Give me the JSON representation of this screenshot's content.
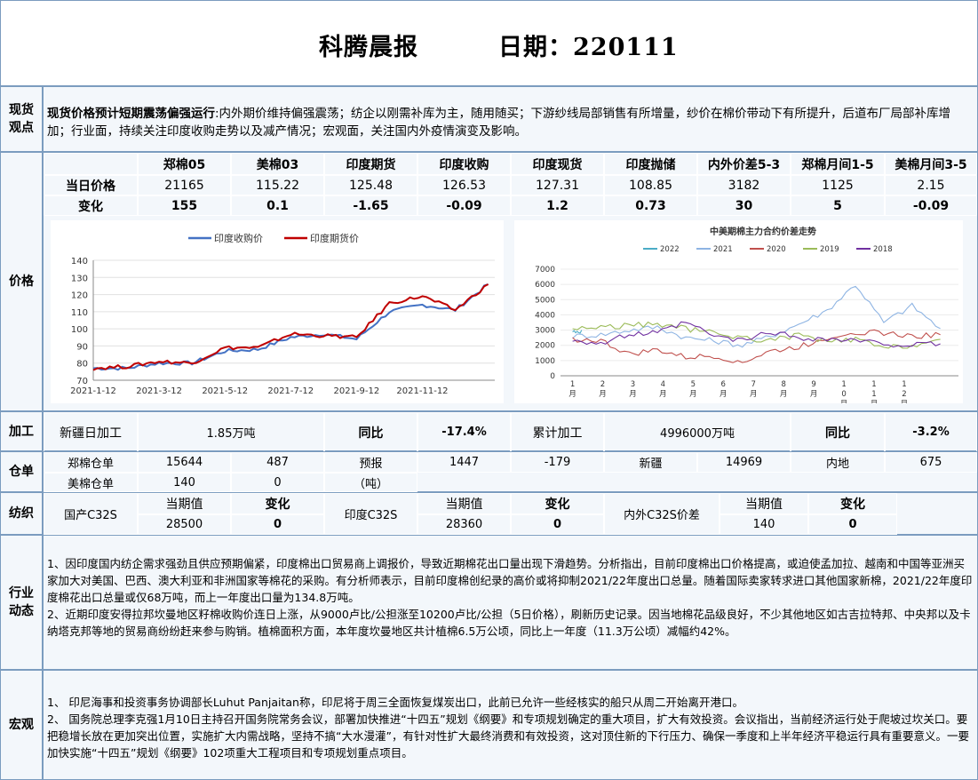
{
  "header": {
    "name": "科腾晨报",
    "date": "日期：220111"
  },
  "spot": {
    "label": "现货观点",
    "lead": "现货价格预计短期震荡偏强运行",
    "text": ":内外期价维持偏强震荡；纺企以刚需补库为主，随用随买；下游纱线局部销售有所增量，纱价在棉价带动下有所提升，后道布厂局部补库增加；行业面，持续关注印度收购走势以及减产情况；宏观面，关注国内外疫情演变及影响。"
  },
  "price": {
    "label": "价格",
    "columns": [
      "郑棉05",
      "美棉03",
      "印度期货",
      "印度收购",
      "印度现货",
      "印度抛储",
      "内外价差5-3",
      "郑棉月间1-5",
      "美棉月间3-5"
    ],
    "row_current_label": "当日价格",
    "current": [
      "21165",
      "115.22",
      "125.48",
      "126.53",
      "127.31",
      "108.85",
      "3182",
      "1125",
      "2.15"
    ],
    "row_change_label": "变化",
    "change": [
      "155",
      "0.1",
      "-1.65",
      "-0.09",
      "1.2",
      "0.73",
      "30",
      "5",
      "-0.09"
    ]
  },
  "chart_data": [
    {
      "type": "line",
      "title": "",
      "series": [
        {
          "name": "印度收购价",
          "color": "#4472c4"
        },
        {
          "name": "印度期货价",
          "color": "#c00000"
        }
      ],
      "x_ticks": [
        "2021-1-12",
        "2021-3-12",
        "2021-5-12",
        "2021-7-12",
        "2021-9-12",
        "2021-11-12"
      ],
      "ylim": [
        70,
        140
      ],
      "y_ticks": [
        70,
        80,
        90,
        100,
        110,
        120,
        130,
        140
      ],
      "points_month": [
        0,
        1,
        2,
        3,
        4,
        5,
        6,
        7,
        8,
        9,
        10,
        11,
        12
      ],
      "series_values": {
        "印度收购价": [
          77,
          77,
          80,
          80,
          87,
          88,
          95,
          97,
          94,
          110,
          114,
          111,
          126
        ],
        "印度期货价": [
          77,
          78,
          81,
          80,
          89,
          89,
          97,
          96,
          95,
          115,
          119,
          111,
          126
        ]
      }
    },
    {
      "type": "line",
      "title": "中美期棉主力合约价差走势",
      "series": [
        {
          "name": "2022",
          "color": "#4bacc6"
        },
        {
          "name": "2021",
          "color": "#8eb4e3"
        },
        {
          "name": "2020",
          "color": "#c0504d"
        },
        {
          "name": "2019",
          "color": "#9bbb59"
        },
        {
          "name": "2018",
          "color": "#7030a0"
        }
      ],
      "ylim": [
        0,
        7000
      ],
      "y_ticks": [
        0,
        1000,
        2000,
        3000,
        4000,
        5000,
        6000,
        7000
      ],
      "x_ticks": [
        "1月",
        "2月",
        "3月",
        "4月",
        "5月",
        "6月",
        "7月",
        "8月",
        "9月",
        "10月",
        "11月",
        "12月"
      ],
      "series_values": {
        "2022": [
          2900,
          3000
        ],
        "2021": [
          2600,
          2700,
          3000,
          3200,
          2500,
          2300,
          2000,
          2600,
          3400,
          4300,
          6000,
          3500,
          4600,
          3100
        ],
        "2020": [
          2400,
          2300,
          1400,
          1700,
          1200,
          1300,
          900,
          1600,
          1900,
          2500,
          2900,
          2800,
          2600,
          2700
        ],
        "2019": [
          3100,
          3200,
          3300,
          3400,
          3100,
          2800,
          2500,
          2300,
          2700,
          2200,
          2400,
          1800,
          2000,
          2400
        ],
        "2018": [
          2400,
          2100,
          2700,
          2800,
          3500,
          2600,
          2300,
          2900,
          2500,
          2400,
          2300,
          2100,
          2000,
          2100
        ]
      }
    }
  ],
  "processing": {
    "label": "加工",
    "xj_label": "新疆日加工",
    "xj_value": "1.85万吨",
    "yoy_label": "同比",
    "xj_yoy": "-17.4%",
    "total_label": "累计加工",
    "total_value": "4996000万吨",
    "total_yoy": "-3.2%"
  },
  "warehouse": {
    "label": "仓单",
    "zm_label": "郑棉仓单",
    "zm_value": "15644",
    "zm_change": "487",
    "forecast_label": "预报",
    "forecast_unit": "（吨）",
    "forecast_value": "1447",
    "forecast_change": "-179",
    "xj_label": "新疆",
    "xj_value": "14969",
    "nd_label": "内地",
    "nd_value": "675",
    "mm_label": "美棉仓单",
    "mm_value": "140",
    "mm_change": "0"
  },
  "textile": {
    "label": "纺织",
    "cur_label": "当期值",
    "chg_label": "变化",
    "items": [
      {
        "name": "国产C32S",
        "value": "28500",
        "change": "0"
      },
      {
        "name": "印度C32S",
        "value": "28360",
        "change": "0"
      },
      {
        "name": "内外C32S价差",
        "value": "140",
        "change": "0"
      }
    ]
  },
  "industry": {
    "label": "行业动态",
    "p1": "1、因印度国内纺企需求强劲且供应预期偏紧，印度棉出口贸易商上调报价，导致近期棉花出口量出现下滑趋势。分析指出，目前印度棉出口价格提高，或迫使孟加拉、越南和中国等亚洲买家加大对美国、巴西、澳大利亚和非洲国家等棉花的采购。有分析师表示，目前印度棉创纪录的高价或将抑制2021/22年度出口总量。随着国际卖家转求进口其他国家新棉，2021/22年度印度棉花出口总量或仅68万吨，而上一年度出口量为134.8万吨。",
    "p2": "2、近期印度安得拉邦坎曼地区籽棉收购价连日上涨，从9000卢比/公担涨至10200卢比/公担（5日价格），刷新历史记录。因当地棉花品级良好，不少其他地区如古吉拉特邦、中央邦以及卡纳塔克邦等地的贸易商纷纷赶来参与购销。植棉面积方面，本年度坎曼地区共计植棉6.5万公顷，同比上一年度（11.3万公顷）减幅约42%。"
  },
  "macro": {
    "label": "宏观",
    "p1": "1、  印尼海事和投资事务协调部长Luhut Panjaitan称，印尼将于周三全面恢复煤炭出口，此前已允许一些经核实的船只从周二开始离开港口。",
    "p2": "2、  国务院总理李克强1月10日主持召开国务院常务会议，部署加快推进“十四五”规划《纲要》和专项规划确定的重大项目，扩大有效投资。会议指出，当前经济运行处于爬坡过坎关口。要把稳增长放在更加突出位置，实施扩大内需战略，坚持不搞“大水漫灌”，有针对性扩大最终消费和有效投资，这对顶住新的下行压力、确保一季度和上半年经济平稳运行具有重要意义。一要加快实施“十四五”规划《纲要》102项重大工程项目和专项规划重点项目。"
  },
  "colors": {
    "border": "#7b9cbf",
    "panel": "#f3f7fb"
  }
}
